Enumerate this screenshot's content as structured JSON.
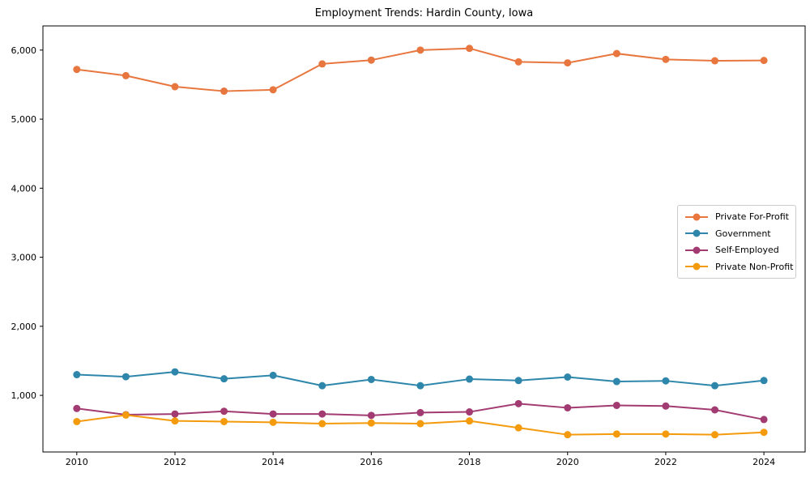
{
  "title": "Employment Trends: Hardin County, Iowa",
  "chart_data": {
    "type": "line",
    "title": "Employment Trends: Hardin County, Iowa",
    "xlabel": "",
    "ylabel": "",
    "grid": false,
    "legend_position": "center right",
    "x": [
      2010,
      2011,
      2012,
      2013,
      2014,
      2015,
      2016,
      2017,
      2018,
      2019,
      2020,
      2021,
      2022,
      2023,
      2024
    ],
    "series": [
      {
        "name": "Private For-Profit",
        "color": "#e8763f",
        "values": [
          5720,
          5630,
          5470,
          5405,
          5425,
          5800,
          5855,
          6000,
          6025,
          5830,
          5815,
          5950,
          5865,
          5845,
          5850
        ]
      },
      {
        "name": "Government",
        "color": "#2e86ab",
        "values": [
          1300,
          1270,
          1340,
          1240,
          1290,
          1140,
          1230,
          1140,
          1235,
          1215,
          1265,
          1200,
          1210,
          1140,
          1215
        ]
      },
      {
        "name": "Self-Employed",
        "color": "#a23b72",
        "values": [
          810,
          720,
          730,
          770,
          730,
          730,
          710,
          750,
          760,
          880,
          820,
          855,
          845,
          790,
          650
        ]
      },
      {
        "name": "Private Non-Profit",
        "color": "#f39a0d",
        "values": [
          620,
          715,
          630,
          620,
          610,
          590,
          600,
          590,
          630,
          530,
          430,
          440,
          440,
          430,
          465
        ]
      }
    ],
    "xlim": [
      2009.31,
      2024.84
    ],
    "ylim": [
      180,
      6350
    ],
    "xticks": [
      {
        "value": 2010,
        "label": "2010"
      },
      {
        "value": 2012,
        "label": "2012"
      },
      {
        "value": 2014,
        "label": "2014"
      },
      {
        "value": 2016,
        "label": "2016"
      },
      {
        "value": 2018,
        "label": "2018"
      },
      {
        "value": 2020,
        "label": "2020"
      },
      {
        "value": 2022,
        "label": "2022"
      },
      {
        "value": 2024,
        "label": "2024"
      }
    ],
    "yticks": [
      {
        "value": 1000,
        "label": "1,000"
      },
      {
        "value": 2000,
        "label": "2,000"
      },
      {
        "value": 3000,
        "label": "3,000"
      },
      {
        "value": 4000,
        "label": "4,000"
      },
      {
        "value": 5000,
        "label": "5,000"
      },
      {
        "value": 6000,
        "label": "6,000"
      }
    ]
  }
}
